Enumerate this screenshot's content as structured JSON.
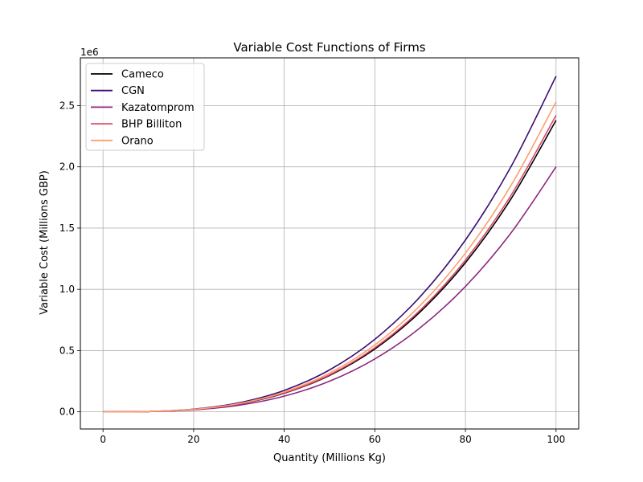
{
  "chart_data": {
    "type": "line",
    "title": "Variable Cost Functions of Firms",
    "xlabel": "Quantity (Millions Kg)",
    "ylabel": "Variable Cost (Millions GBP)",
    "y_scale_label": "1e6",
    "xlim": [
      -5,
      105
    ],
    "ylim": [
      -140000,
      2890000
    ],
    "x_ticks": [
      0,
      20,
      40,
      60,
      80,
      100
    ],
    "x_tick_labels": [
      "0",
      "20",
      "40",
      "60",
      "80",
      "100"
    ],
    "y_ticks": [
      0,
      500000,
      1000000,
      1500000,
      2000000,
      2500000
    ],
    "y_tick_labels": [
      "0.0",
      "0.5",
      "1.0",
      "1.5",
      "2.0",
      "2.5"
    ],
    "grid": true,
    "legend_position": "upper-left",
    "series": [
      {
        "name": "Cameco",
        "color": "#000004",
        "x": [
          0,
          10,
          20,
          30,
          40,
          50,
          60,
          70,
          80,
          90,
          100
        ],
        "y": [
          0,
          2400,
          19000,
          64000,
          152000,
          297000,
          513000,
          816000,
          1218000,
          1735000,
          2380000
        ]
      },
      {
        "name": "CGN",
        "color": "#3b0f70",
        "x": [
          0,
          10,
          20,
          30,
          40,
          50,
          60,
          70,
          80,
          90,
          100
        ],
        "y": [
          0,
          2700,
          22000,
          74000,
          175000,
          342000,
          592000,
          940000,
          1403000,
          1998000,
          2740000
        ]
      },
      {
        "name": "Kazatomprom",
        "color": "#8c2981",
        "x": [
          0,
          10,
          20,
          30,
          40,
          50,
          60,
          70,
          80,
          90,
          100
        ],
        "y": [
          0,
          2000,
          16000,
          54000,
          128000,
          250000,
          432000,
          686000,
          1024000,
          1458000,
          2000000
        ]
      },
      {
        "name": "BHP Billiton",
        "color": "#de4968",
        "x": [
          0,
          10,
          20,
          30,
          40,
          50,
          60,
          70,
          80,
          90,
          100
        ],
        "y": [
          0,
          2400,
          19400,
          65000,
          155000,
          302000,
          523000,
          830000,
          1239000,
          1764000,
          2420000
        ]
      },
      {
        "name": "Orano",
        "color": "#fe9f6d",
        "x": [
          0,
          10,
          20,
          30,
          40,
          50,
          60,
          70,
          80,
          90,
          100
        ],
        "y": [
          0,
          2500,
          20200,
          68000,
          162000,
          316000,
          546000,
          868000,
          1296000,
          1845000,
          2530000
        ]
      }
    ]
  }
}
